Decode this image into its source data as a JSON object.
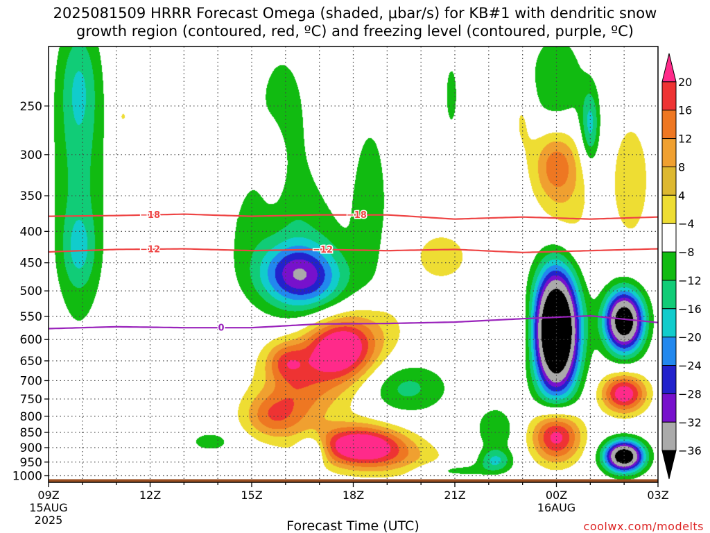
{
  "title": {
    "line1": "2025081509 HRRR Forecast Omega (shaded, μbar/s) for KB#1 with dendritic snow",
    "line2": "growth region (contoured, red, ºC) and freezing level (contoured, purple, ºC)"
  },
  "credit": "coolwx.com/modelts",
  "chart_data": {
    "type": "heatmap",
    "title": "2025081509 HRRR Forecast Omega (shaded, μbar/s) for KB#1 with dendritic snow growth region (contoured, red, ºC) and freezing level (contoured, purple, ºC)",
    "xlabel": "Forecast Time (UTC)",
    "ylabel": "",
    "x_ticks": [
      {
        "hour": 0,
        "label": "09Z",
        "sub": [
          "15AUG",
          "2025"
        ]
      },
      {
        "hour": 3,
        "label": "12Z",
        "sub": []
      },
      {
        "hour": 6,
        "label": "15Z",
        "sub": []
      },
      {
        "hour": 9,
        "label": "18Z",
        "sub": []
      },
      {
        "hour": 12,
        "label": "21Z",
        "sub": []
      },
      {
        "hour": 15,
        "label": "00Z",
        "sub": [
          "16AUG"
        ]
      },
      {
        "hour": 18,
        "label": "03Z",
        "sub": []
      }
    ],
    "xlim_hours": [
      0,
      18
    ],
    "y_scale": "log-pressure",
    "ylim_hPa": [
      1025,
      200
    ],
    "y_ticks": [
      250,
      300,
      350,
      400,
      450,
      500,
      550,
      600,
      650,
      700,
      750,
      800,
      850,
      900,
      950,
      1000
    ],
    "grid": true,
    "colorbar": {
      "levels": [
        20,
        16,
        12,
        8,
        4,
        -4,
        -8,
        -12,
        -16,
        -20,
        -24,
        -28,
        -32,
        -36
      ],
      "label_levels": [
        20,
        16,
        12,
        8,
        4,
        -4,
        -8,
        -12,
        -16,
        -20,
        -24,
        -28,
        -32,
        -36
      ],
      "colors": [
        "#ff2a8a",
        "#ee3333",
        "#ee7722",
        "#f0a030",
        "#ddb830",
        "#eedd33",
        "#ffffff",
        "#11bb11",
        "#11cc77",
        "#11cccc",
        "#2288ee",
        "#2222cc",
        "#7711cc",
        "#aaaaaa",
        "#000000"
      ]
    },
    "omega_blobs": [
      {
        "t": 0.9,
        "p": 330,
        "st": 0.55,
        "sp": 0.4,
        "amp": -9
      },
      {
        "t": 0.9,
        "p": 430,
        "st": 0.35,
        "sp": 0.1,
        "amp": -7
      },
      {
        "t": 6.8,
        "p": 270,
        "st": 0.6,
        "sp": 0.22,
        "amp": -9
      },
      {
        "t": 7.0,
        "p": 400,
        "st": 1.3,
        "sp": 0.16,
        "amp": -7
      },
      {
        "t": 7.4,
        "p": 470,
        "st": 0.8,
        "sp": 0.08,
        "amp": -22
      },
      {
        "t": 8.2,
        "p": 520,
        "st": 1.2,
        "sp": 0.1,
        "amp": -6
      },
      {
        "t": 4.8,
        "p": 880,
        "st": 0.5,
        "sp": 0.03,
        "amp": -6
      },
      {
        "t": 6.7,
        "p": 310,
        "st": 0.4,
        "sp": 0.2,
        "amp": 7
      },
      {
        "t": 7.4,
        "p": 720,
        "st": 0.7,
        "sp": 0.1,
        "amp": 8
      },
      {
        "t": 6.6,
        "p": 800,
        "st": 0.6,
        "sp": 0.06,
        "amp": 12
      },
      {
        "t": 7.0,
        "p": 650,
        "st": 0.4,
        "sp": 0.05,
        "amp": 10
      },
      {
        "t": 8.6,
        "p": 620,
        "st": 0.7,
        "sp": 0.08,
        "amp": 24
      },
      {
        "t": 8.0,
        "p": 700,
        "st": 1.4,
        "sp": 0.14,
        "amp": 6
      },
      {
        "t": 9.5,
        "p": 560,
        "st": 0.9,
        "sp": 0.09,
        "amp": 6
      },
      {
        "t": 11.6,
        "p": 440,
        "st": 0.7,
        "sp": 0.08,
        "amp": 6
      },
      {
        "t": 9.2,
        "p": 890,
        "st": 0.9,
        "sp": 0.05,
        "amp": 24
      },
      {
        "t": 10.0,
        "p": 940,
        "st": 1.2,
        "sp": 0.05,
        "amp": 8
      },
      {
        "t": 7.8,
        "p": 910,
        "st": 0.3,
        "sp": 0.04,
        "amp": -12
      },
      {
        "t": 10.5,
        "p": 720,
        "st": 0.9,
        "sp": 0.07,
        "amp": -10
      },
      {
        "t": 13.2,
        "p": 840,
        "st": 0.4,
        "sp": 0.06,
        "amp": -8
      },
      {
        "t": 13.2,
        "p": 945,
        "st": 0.35,
        "sp": 0.03,
        "amp": -12
      },
      {
        "t": 12.0,
        "p": 980,
        "st": 0.8,
        "sp": 0.02,
        "amp": -6
      },
      {
        "t": 9.5,
        "p": 350,
        "st": 0.35,
        "sp": 0.2,
        "amp": -7
      },
      {
        "t": 11.9,
        "p": 240,
        "st": 0.15,
        "sp": 0.1,
        "amp": -6
      },
      {
        "t": 14.0,
        "p": 260,
        "st": 0.25,
        "sp": 0.1,
        "amp": 5
      },
      {
        "t": 15.0,
        "p": 310,
        "st": 0.5,
        "sp": 0.1,
        "amp": 14
      },
      {
        "t": 15.3,
        "p": 390,
        "st": 0.6,
        "sp": 0.15,
        "amp": 5
      },
      {
        "t": 17.2,
        "p": 330,
        "st": 0.5,
        "sp": 0.2,
        "amp": 6
      },
      {
        "t": 15.0,
        "p": 580,
        "st": 0.45,
        "sp": 0.16,
        "amp": -60
      },
      {
        "t": 17.0,
        "p": 560,
        "st": 0.4,
        "sp": 0.08,
        "amp": -45
      },
      {
        "t": 15.0,
        "p": 230,
        "st": 0.6,
        "sp": 0.14,
        "amp": -8
      },
      {
        "t": 16.0,
        "p": 270,
        "st": 0.2,
        "sp": 0.1,
        "amp": -13
      },
      {
        "t": 15.0,
        "p": 860,
        "st": 0.5,
        "sp": 0.07,
        "amp": 24
      },
      {
        "t": 17.0,
        "p": 735,
        "st": 0.45,
        "sp": 0.05,
        "amp": 24
      },
      {
        "t": 17.0,
        "p": 930,
        "st": 0.4,
        "sp": 0.04,
        "amp": -45
      },
      {
        "t": 13.8,
        "p": 580,
        "st": 0.4,
        "sp": 0.1,
        "amp": 5
      },
      {
        "t": 0.9,
        "p": 230,
        "st": 0.4,
        "sp": 0.15,
        "amp": -7
      },
      {
        "t": 2.2,
        "p": 260,
        "st": 0.1,
        "sp": 0.02,
        "amp": 5
      }
    ],
    "contours": [
      {
        "name": "-18",
        "color": "#ee4444",
        "label_hours": [
          3.0,
          9.1
        ],
        "points": [
          [
            0,
            378
          ],
          [
            2,
            377
          ],
          [
            4,
            375
          ],
          [
            6,
            378
          ],
          [
            8,
            376
          ],
          [
            10,
            376
          ],
          [
            12,
            382
          ],
          [
            14,
            379
          ],
          [
            16,
            382
          ],
          [
            18,
            379
          ]
        ]
      },
      {
        "name": "-12",
        "color": "#ee4444",
        "label_hours": [
          3.0,
          8.1
        ],
        "points": [
          [
            0,
            432
          ],
          [
            2,
            428
          ],
          [
            4,
            427
          ],
          [
            6,
            430
          ],
          [
            8,
            428
          ],
          [
            10,
            430
          ],
          [
            12,
            428
          ],
          [
            14,
            433
          ],
          [
            16,
            430
          ],
          [
            18,
            427
          ]
        ]
      },
      {
        "name": "0",
        "color": "#9922bb",
        "label_hours": [
          5.1
        ],
        "points": [
          [
            0,
            576
          ],
          [
            2,
            572
          ],
          [
            4,
            574
          ],
          [
            6,
            574
          ],
          [
            8,
            566
          ],
          [
            10,
            565
          ],
          [
            12,
            562
          ],
          [
            14,
            555
          ],
          [
            16,
            549
          ],
          [
            18,
            563
          ]
        ]
      }
    ],
    "ground_hPa": 1013
  }
}
